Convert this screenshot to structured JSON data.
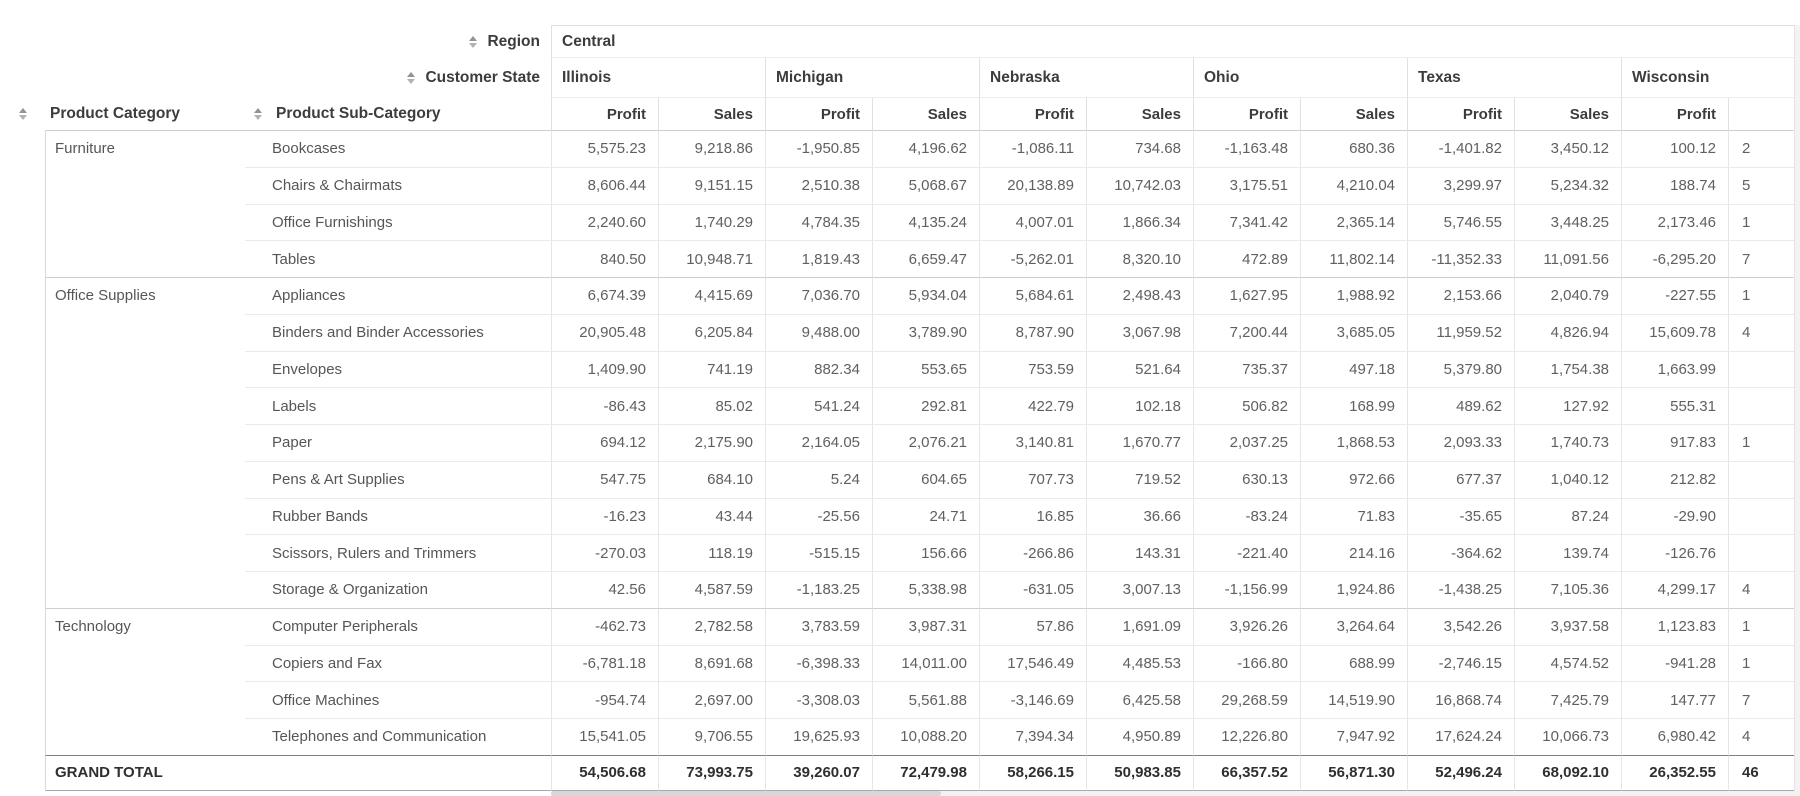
{
  "pivot": {
    "region_label": "Region",
    "region_value": "Central",
    "state_label": "Customer State",
    "category_header": "Product Category",
    "subcategory_header": "Product Sub-Category",
    "measures": [
      "Profit",
      "Sales"
    ],
    "states": [
      "Illinois",
      "Michigan",
      "Nebraska",
      "Ohio",
      "Texas",
      "Wisconsin"
    ],
    "visible_measure_columns": 11,
    "groups": [
      {
        "category": "Furniture",
        "rows": [
          {
            "sub": "Bookcases",
            "values": [
              "5,575.23",
              "9,218.86",
              "-1,950.85",
              "4,196.62",
              "-1,086.11",
              "734.68",
              "-1,163.48",
              "680.36",
              "-1,401.82",
              "3,450.12",
              "100.12"
            ],
            "clipped": "2"
          },
          {
            "sub": "Chairs & Chairmats",
            "values": [
              "8,606.44",
              "9,151.15",
              "2,510.38",
              "5,068.67",
              "20,138.89",
              "10,742.03",
              "3,175.51",
              "4,210.04",
              "3,299.97",
              "5,234.32",
              "188.74"
            ],
            "clipped": "5"
          },
          {
            "sub": "Office Furnishings",
            "values": [
              "2,240.60",
              "1,740.29",
              "4,784.35",
              "4,135.24",
              "4,007.01",
              "1,866.34",
              "7,341.42",
              "2,365.14",
              "5,746.55",
              "3,448.25",
              "2,173.46"
            ],
            "clipped": "1"
          },
          {
            "sub": "Tables",
            "values": [
              "840.50",
              "10,948.71",
              "1,819.43",
              "6,659.47",
              "-5,262.01",
              "8,320.10",
              "472.89",
              "11,802.14",
              "-11,352.33",
              "11,091.56",
              "-6,295.20"
            ],
            "clipped": "7"
          }
        ]
      },
      {
        "category": "Office Supplies",
        "rows": [
          {
            "sub": "Appliances",
            "values": [
              "6,674.39",
              "4,415.69",
              "7,036.70",
              "5,934.04",
              "5,684.61",
              "2,498.43",
              "1,627.95",
              "1,988.92",
              "2,153.66",
              "2,040.79",
              "-227.55"
            ],
            "clipped": "1"
          },
          {
            "sub": "Binders and Binder Accessories",
            "values": [
              "20,905.48",
              "6,205.84",
              "9,488.00",
              "3,789.90",
              "8,787.90",
              "3,067.98",
              "7,200.44",
              "3,685.05",
              "11,959.52",
              "4,826.94",
              "15,609.78"
            ],
            "clipped": "4"
          },
          {
            "sub": "Envelopes",
            "values": [
              "1,409.90",
              "741.19",
              "882.34",
              "553.65",
              "753.59",
              "521.64",
              "735.37",
              "497.18",
              "5,379.80",
              "1,754.38",
              "1,663.99"
            ],
            "clipped": ""
          },
          {
            "sub": "Labels",
            "values": [
              "-86.43",
              "85.02",
              "541.24",
              "292.81",
              "422.79",
              "102.18",
              "506.82",
              "168.99",
              "489.62",
              "127.92",
              "555.31"
            ],
            "clipped": ""
          },
          {
            "sub": "Paper",
            "values": [
              "694.12",
              "2,175.90",
              "2,164.05",
              "2,076.21",
              "3,140.81",
              "1,670.77",
              "2,037.25",
              "1,868.53",
              "2,093.33",
              "1,740.73",
              "917.83"
            ],
            "clipped": "1"
          },
          {
            "sub": "Pens & Art Supplies",
            "values": [
              "547.75",
              "684.10",
              "5.24",
              "604.65",
              "707.73",
              "719.52",
              "630.13",
              "972.66",
              "677.37",
              "1,040.12",
              "212.82"
            ],
            "clipped": ""
          },
          {
            "sub": "Rubber Bands",
            "values": [
              "-16.23",
              "43.44",
              "-25.56",
              "24.71",
              "16.85",
              "36.66",
              "-83.24",
              "71.83",
              "-35.65",
              "87.24",
              "-29.90"
            ],
            "clipped": ""
          },
          {
            "sub": "Scissors, Rulers and Trimmers",
            "values": [
              "-270.03",
              "118.19",
              "-515.15",
              "156.66",
              "-266.86",
              "143.31",
              "-221.40",
              "214.16",
              "-364.62",
              "139.74",
              "-126.76"
            ],
            "clipped": ""
          },
          {
            "sub": "Storage & Organization",
            "values": [
              "42.56",
              "4,587.59",
              "-1,183.25",
              "5,338.98",
              "-631.05",
              "3,007.13",
              "-1,156.99",
              "1,924.86",
              "-1,438.25",
              "7,105.36",
              "4,299.17"
            ],
            "clipped": "4"
          }
        ]
      },
      {
        "category": "Technology",
        "rows": [
          {
            "sub": "Computer Peripherals",
            "values": [
              "-462.73",
              "2,782.58",
              "3,783.59",
              "3,987.31",
              "57.86",
              "1,691.09",
              "3,926.26",
              "3,264.64",
              "3,542.26",
              "3,937.58",
              "1,123.83"
            ],
            "clipped": "1"
          },
          {
            "sub": "Copiers and Fax",
            "values": [
              "-6,781.18",
              "8,691.68",
              "-6,398.33",
              "14,011.00",
              "17,546.49",
              "4,485.53",
              "-166.80",
              "688.99",
              "-2,746.15",
              "4,574.52",
              "-941.28"
            ],
            "clipped": "1"
          },
          {
            "sub": "Office Machines",
            "values": [
              "-954.74",
              "2,697.00",
              "-3,308.03",
              "5,561.88",
              "-3,146.69",
              "6,425.58",
              "29,268.59",
              "14,519.90",
              "16,868.74",
              "7,425.79",
              "147.77"
            ],
            "clipped": "7"
          },
          {
            "sub": "Telephones and Communication",
            "values": [
              "15,541.05",
              "9,706.55",
              "19,625.93",
              "10,088.20",
              "7,394.34",
              "4,950.89",
              "12,226.80",
              "7,947.92",
              "17,624.24",
              "10,066.73",
              "6,980.42"
            ],
            "clipped": "4"
          }
        ]
      }
    ],
    "grand_total": {
      "label": "GRAND TOTAL",
      "values": [
        "54,506.68",
        "73,993.75",
        "39,260.07",
        "72,479.98",
        "58,266.15",
        "50,983.85",
        "66,357.52",
        "56,871.30",
        "52,496.24",
        "68,092.10",
        "26,352.55"
      ],
      "clipped": "46"
    }
  },
  "icons": {
    "sort": "stacked up/down triangles"
  },
  "colors": {
    "header_text": "#3c3c3c",
    "data_text": "#606060",
    "grid_line": "#e6e6e6",
    "group_line": "#cfcfcf",
    "grand_total_line": "#7f7f7f",
    "sort_icon": "#9a9a9a"
  }
}
